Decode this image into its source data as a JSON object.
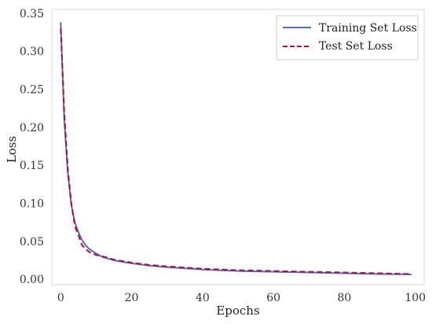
{
  "chart_data": {
    "type": "line",
    "title": "",
    "xlabel": "Epochs",
    "ylabel": "Loss",
    "xlim": [
      -2.5,
      102.5
    ],
    "ylim": [
      -0.007,
      0.355
    ],
    "x_ticks": [
      0,
      20,
      40,
      60,
      80,
      100
    ],
    "y_ticks": [
      0.0,
      0.05,
      0.1,
      0.15,
      0.2,
      0.25,
      0.3,
      0.35
    ],
    "x_tick_labels": [
      "0",
      "20",
      "40",
      "60",
      "80",
      "100"
    ],
    "y_tick_labels": [
      "0.00",
      "0.05",
      "0.10",
      "0.15",
      "0.20",
      "0.25",
      "0.30",
      "0.35"
    ],
    "grid": false,
    "legend_position": "top-right",
    "series": [
      {
        "name": "Training Set Loss",
        "color": "#5a6cba",
        "style": "solid",
        "x": [
          0,
          1,
          2,
          3,
          4,
          5,
          6,
          7,
          8,
          10,
          12,
          15,
          20,
          25,
          30,
          40,
          50,
          60,
          70,
          80,
          90,
          99
        ],
        "y": [
          0.338,
          0.21,
          0.14,
          0.098,
          0.075,
          0.062,
          0.052,
          0.045,
          0.04,
          0.034,
          0.029,
          0.025,
          0.021,
          0.018,
          0.016,
          0.013,
          0.011,
          0.01,
          0.009,
          0.008,
          0.007,
          0.0065
        ]
      },
      {
        "name": "Test Set Loss",
        "color": "#a0153e",
        "style": "dashed",
        "x": [
          0,
          1,
          2,
          3,
          4,
          5,
          6,
          7,
          8,
          10,
          12,
          15,
          20,
          25,
          30,
          40,
          50,
          60,
          70,
          80,
          90,
          99
        ],
        "y": [
          0.33,
          0.22,
          0.145,
          0.1,
          0.07,
          0.058,
          0.045,
          0.04,
          0.036,
          0.032,
          0.03,
          0.026,
          0.022,
          0.019,
          0.017,
          0.014,
          0.012,
          0.011,
          0.01,
          0.009,
          0.008,
          0.007
        ]
      }
    ]
  }
}
